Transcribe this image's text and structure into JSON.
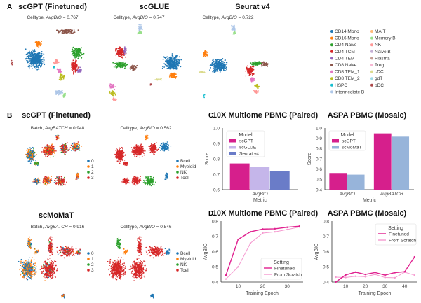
{
  "panel_labels": {
    "a": "A",
    "b": "B",
    "c": "C",
    "d": "D"
  },
  "panel_a": {
    "titles": [
      "scGPT (Finetuned)",
      "scGLUE",
      "Seurat v4"
    ],
    "subtitles": [
      {
        "prefix": "Celltype, ",
        "metric": "AvgBIO",
        "value": " = 0.767"
      },
      {
        "prefix": "Celltype, ",
        "metric": "AvgBIO",
        "value": " = 0.747"
      },
      {
        "prefix": "Celltype, ",
        "metric": "AvgBIO",
        "value": " = 0.722"
      }
    ],
    "legend": [
      {
        "label": "CD14 Mono",
        "color": "#1f77b4"
      },
      {
        "label": "CD16 Mono",
        "color": "#ff7f0e"
      },
      {
        "label": "CD4 Naive",
        "color": "#2ca02c"
      },
      {
        "label": "CD4 TCM",
        "color": "#d62728"
      },
      {
        "label": "CD4 TEM",
        "color": "#9467bd"
      },
      {
        "label": "CD8 Naive",
        "color": "#8c564b"
      },
      {
        "label": "CD8 TEM_1",
        "color": "#e377c2"
      },
      {
        "label": "CD8 TEM_2",
        "color": "#bcbd22"
      },
      {
        "label": "HSPC",
        "color": "#17becf"
      },
      {
        "label": "Intermediate B",
        "color": "#aec7e8"
      },
      {
        "label": "MAIT",
        "color": "#ffbb78"
      },
      {
        "label": "Memory B",
        "color": "#98df8a"
      },
      {
        "label": "NK",
        "color": "#ff9896"
      },
      {
        "label": "Naive B",
        "color": "#c5b0d5"
      },
      {
        "label": "Plasma",
        "color": "#c49c94"
      },
      {
        "label": "Treg",
        "color": "#f7b6d2"
      },
      {
        "label": "cDC",
        "color": "#dbdb8d"
      },
      {
        "label": "gdT",
        "color": "#9edae5"
      },
      {
        "label": "pDC",
        "color": "#ad494a"
      }
    ]
  },
  "panel_b": {
    "models": [
      {
        "title": "scGPT (Finetuned)",
        "batch_sub": {
          "prefix": "Batch, ",
          "metric": "AvgBATCH",
          "value": " = 0.948"
        },
        "cell_sub": {
          "prefix": "Celltype, ",
          "metric": "AvgBIO",
          "value": " = 0.562"
        }
      },
      {
        "title": "scMoMaT",
        "batch_sub": {
          "prefix": "Batch, ",
          "metric": "AvgBATCH",
          "value": " = 0.916"
        },
        "cell_sub": {
          "prefix": "Celltype, ",
          "metric": "AvgBIO",
          "value": " = 0.546"
        }
      }
    ],
    "batch_legend": [
      {
        "label": "0",
        "color": "#1f77b4"
      },
      {
        "label": "1",
        "color": "#ff7f0e"
      },
      {
        "label": "2",
        "color": "#2ca02c"
      },
      {
        "label": "3",
        "color": "#d62728"
      }
    ],
    "cell_legend": [
      {
        "label": "Bcell",
        "color": "#1f77b4"
      },
      {
        "label": "Myeloid",
        "color": "#ff7f0e"
      },
      {
        "label": "NK",
        "color": "#2ca02c"
      },
      {
        "label": "Tcell",
        "color": "#d62728"
      }
    ]
  },
  "chart_data": [
    {
      "id": "c1",
      "type": "bar",
      "title": "10X Multiome PBMC (Paired)",
      "xlabel": "Metric",
      "ylabel": "Score",
      "ylim": [
        0.6,
        1.0
      ],
      "yticks": [
        "0.6",
        "0.7",
        "0.8",
        "0.9",
        "1.0"
      ],
      "categories": [
        "AvgBIO"
      ],
      "legend_title": "Model",
      "legend_placement": "top-left",
      "series": [
        {
          "name": "scGPT",
          "color": "#d61f8c",
          "values": [
            0.77
          ]
        },
        {
          "name": "scGLUE",
          "color": "#c5b6ea",
          "values": [
            0.747
          ]
        },
        {
          "name": "Seurat v4",
          "color": "#6a7cc8",
          "values": [
            0.722
          ]
        }
      ]
    },
    {
      "id": "c2",
      "type": "bar",
      "title": "ASPA PBMC (Mosaic)",
      "xlabel": "Metric",
      "ylabel": "Score",
      "ylim": [
        0.4,
        1.0
      ],
      "yticks": [
        "0.4",
        "0.5",
        "0.6",
        "0.7",
        "0.8",
        "0.9",
        "1.0"
      ],
      "categories": [
        "AvgBIO",
        "AvgBATCH"
      ],
      "legend_title": "Model",
      "legend_placement": "top-left",
      "series": [
        {
          "name": "scGPT",
          "color": "#d61f8c",
          "values": [
            0.562,
            0.948
          ]
        },
        {
          "name": "scMoMaT",
          "color": "#97b4da",
          "values": [
            0.546,
            0.916
          ]
        }
      ]
    },
    {
      "id": "d1",
      "type": "line",
      "title": "10X Multiome PBMC (Paired)",
      "xlabel": "Training Epoch",
      "ylabel": "AvgBIO",
      "ylim": [
        0.4,
        0.8
      ],
      "yticks": [
        "0.4",
        "0.5",
        "0.6",
        "0.7",
        "0.8"
      ],
      "xticks": [
        "10",
        "20",
        "30"
      ],
      "legend_title": "Setting",
      "legend_placement": "bottom-right",
      "x": [
        5,
        10,
        15,
        20,
        25,
        30,
        35
      ],
      "series": [
        {
          "name": "Finetuned",
          "color": "#e0208f",
          "values": [
            0.445,
            0.68,
            0.73,
            0.748,
            0.75,
            0.76,
            0.767
          ]
        },
        {
          "name": "From Scratch",
          "color": "#f59ad0",
          "values": [
            0.42,
            0.5,
            0.655,
            0.722,
            0.73,
            0.745,
            0.762
          ]
        }
      ]
    },
    {
      "id": "d2",
      "type": "line",
      "title": "ASPA PBMC (Mosaic)",
      "xlabel": "Training Epoch",
      "ylabel": "AvgBIO",
      "ylim": [
        0.4,
        0.8
      ],
      "yticks": [
        "0.4",
        "0.5",
        "0.6",
        "0.7",
        "0.8"
      ],
      "xticks": [
        "10",
        "20",
        "30",
        "40"
      ],
      "legend_title": "Setting",
      "legend_placement": "top-right",
      "x": [
        5,
        10,
        15,
        20,
        25,
        30,
        35,
        40,
        45
      ],
      "series": [
        {
          "name": "Finetuned",
          "color": "#e0208f",
          "values": [
            0.4,
            0.447,
            0.465,
            0.45,
            0.463,
            0.445,
            0.462,
            0.468,
            0.565
          ]
        },
        {
          "name": "From Scratch",
          "color": "#f59ad0",
          "values": [
            0.432,
            0.43,
            0.438,
            0.435,
            0.45,
            0.43,
            0.428,
            0.465,
            0.445
          ]
        }
      ]
    }
  ]
}
